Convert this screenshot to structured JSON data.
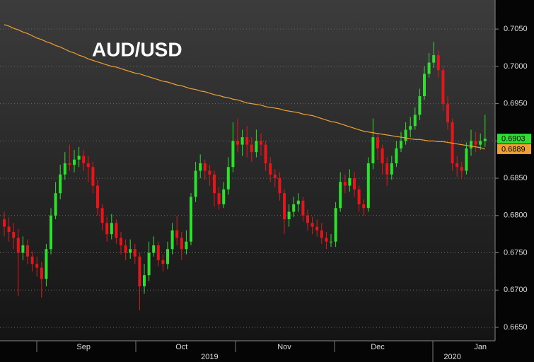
{
  "chart_data": {
    "type": "candlestick",
    "title": "AUD/USD",
    "categories": [
      null,
      null,
      null,
      null,
      null,
      null,
      null,
      null,
      null,
      null,
      null,
      null,
      null,
      null,
      null,
      null,
      null,
      "Sep",
      null,
      null,
      null,
      null,
      null,
      null,
      null,
      null,
      null,
      null,
      null,
      null,
      null,
      null,
      null,
      null,
      null,
      null,
      null,
      null,
      "Oct",
      null,
      null,
      null,
      null,
      null,
      null,
      null,
      null,
      null,
      null,
      null,
      null,
      null,
      null,
      null,
      null,
      null,
      null,
      null,
      null,
      null,
      "Nov",
      null,
      null,
      null,
      null,
      null,
      null,
      null,
      null,
      null,
      null,
      null,
      null,
      null,
      null,
      null,
      null,
      null,
      null,
      null,
      "Dec",
      null,
      null,
      null,
      null,
      null,
      null,
      null,
      null,
      null,
      null,
      null,
      null,
      null,
      null,
      null,
      null,
      null,
      null,
      null,
      null,
      null,
      "Jan",
      null
    ],
    "categories2": [
      null,
      null,
      null,
      null,
      null,
      null,
      null,
      null,
      null,
      null,
      null,
      null,
      null,
      null,
      null,
      null,
      null,
      null,
      null,
      null,
      null,
      null,
      null,
      null,
      null,
      null,
      null,
      null,
      null,
      null,
      null,
      null,
      null,
      null,
      null,
      null,
      null,
      null,
      null,
      null,
      null,
      null,
      null,
      null,
      "2019",
      null,
      null,
      null,
      null,
      null,
      null,
      null,
      null,
      null,
      null,
      null,
      null,
      null,
      null,
      null,
      null,
      null,
      null,
      null,
      null,
      null,
      null,
      null,
      null,
      null,
      null,
      null,
      null,
      null,
      null,
      null,
      null,
      null,
      null,
      null,
      null,
      null,
      null,
      null,
      null,
      null,
      null,
      null,
      null,
      null,
      null,
      null,
      null,
      null,
      null,
      null,
      "2020",
      null,
      null,
      null,
      null,
      null,
      null,
      null
    ],
    "open": [
      0.6795,
      0.6785,
      0.6778,
      0.677,
      0.675,
      0.676,
      0.6745,
      0.6735,
      0.673,
      0.6715,
      0.6755,
      0.68,
      0.683,
      0.6855,
      0.687,
      0.6868,
      0.6875,
      0.688,
      0.687,
      0.6865,
      0.684,
      0.681,
      0.679,
      0.6775,
      0.679,
      0.677,
      0.676,
      0.675,
      0.6755,
      0.6745,
      0.6705,
      0.672,
      0.675,
      0.676,
      0.674,
      0.6735,
      0.6755,
      0.678,
      0.677,
      0.6755,
      0.6765,
      0.6825,
      0.686,
      0.687,
      0.686,
      0.6855,
      0.683,
      0.6815,
      0.6835,
      0.6865,
      0.69,
      0.6895,
      0.6905,
      0.6895,
      0.6885,
      0.69,
      0.6895,
      0.687,
      0.6855,
      0.685,
      0.683,
      0.6795,
      0.6805,
      0.6815,
      0.682,
      0.68,
      0.679,
      0.6785,
      0.678,
      0.677,
      0.6765,
      0.6765,
      0.681,
      0.6845,
      0.684,
      0.685,
      0.6835,
      0.6815,
      0.681,
      0.687,
      0.6905,
      0.689,
      0.687,
      0.6855,
      0.687,
      0.689,
      0.69,
      0.6915,
      0.692,
      0.6935,
      0.696,
      0.699,
      0.7005,
      0.7015,
      0.6995,
      0.695,
      0.6925,
      0.687,
      0.6865,
      0.686,
      0.689,
      0.69,
      0.6895,
      0.69
    ],
    "high": [
      0.6805,
      0.6798,
      0.679,
      0.6782,
      0.6772,
      0.6768,
      0.6752,
      0.6745,
      0.6738,
      0.6762,
      0.681,
      0.6845,
      0.6868,
      0.6885,
      0.6895,
      0.6888,
      0.6892,
      0.6888,
      0.688,
      0.6872,
      0.6848,
      0.6815,
      0.6798,
      0.6802,
      0.6795,
      0.6778,
      0.6768,
      0.6768,
      0.6762,
      0.675,
      0.6735,
      0.6765,
      0.6772,
      0.6765,
      0.6748,
      0.6765,
      0.679,
      0.68,
      0.6778,
      0.678,
      0.683,
      0.6872,
      0.6882,
      0.6875,
      0.6868,
      0.686,
      0.6838,
      0.6845,
      0.6878,
      0.6925,
      0.693,
      0.6915,
      0.692,
      0.6905,
      0.6915,
      0.691,
      0.69,
      0.6878,
      0.6862,
      0.6858,
      0.6835,
      0.6815,
      0.6825,
      0.683,
      0.6825,
      0.6808,
      0.6798,
      0.6795,
      0.679,
      0.6778,
      0.6775,
      0.6818,
      0.6858,
      0.6855,
      0.6862,
      0.6858,
      0.684,
      0.6822,
      0.6878,
      0.693,
      0.691,
      0.6895,
      0.6878,
      0.688,
      0.69,
      0.6912,
      0.6925,
      0.6932,
      0.6945,
      0.697,
      0.7,
      0.7018,
      0.7033,
      0.7022,
      0.7,
      0.696,
      0.693,
      0.688,
      0.6872,
      0.6898,
      0.6915,
      0.6912,
      0.691,
      0.6935
    ],
    "low": [
      0.6772,
      0.6765,
      0.6755,
      0.6692,
      0.674,
      0.6735,
      0.6725,
      0.6718,
      0.669,
      0.6705,
      0.6748,
      0.6795,
      0.6822,
      0.6848,
      0.686,
      0.6858,
      0.6865,
      0.686,
      0.6845,
      0.683,
      0.68,
      0.678,
      0.6765,
      0.6768,
      0.6762,
      0.6748,
      0.674,
      0.6742,
      0.6735,
      0.6673,
      0.6695,
      0.6712,
      0.6745,
      0.6732,
      0.6725,
      0.6728,
      0.6748,
      0.676,
      0.674,
      0.6748,
      0.676,
      0.6818,
      0.685,
      0.6848,
      0.684,
      0.6812,
      0.6808,
      0.681,
      0.6828,
      0.6858,
      0.6885,
      0.688,
      0.6878,
      0.6872,
      0.6878,
      0.688,
      0.686,
      0.6845,
      0.6838,
      0.682,
      0.6775,
      0.6785,
      0.6798,
      0.6805,
      0.6792,
      0.678,
      0.6775,
      0.6772,
      0.6762,
      0.6755,
      0.6758,
      0.6758,
      0.6805,
      0.683,
      0.6832,
      0.6825,
      0.6805,
      0.68,
      0.6805,
      0.6862,
      0.6875,
      0.6855,
      0.684,
      0.6848,
      0.6865,
      0.6885,
      0.6895,
      0.6905,
      0.6915,
      0.6928,
      0.6955,
      0.6985,
      0.6998,
      0.6985,
      0.694,
      0.6915,
      0.686,
      0.6852,
      0.685,
      0.6855,
      0.688,
      0.6885,
      0.6888,
      0.6892
    ],
    "close": [
      0.6785,
      0.6778,
      0.677,
      0.675,
      0.676,
      0.6745,
      0.6735,
      0.673,
      0.6715,
      0.6755,
      0.68,
      0.683,
      0.6855,
      0.687,
      0.6868,
      0.6875,
      0.688,
      0.687,
      0.6865,
      0.684,
      0.681,
      0.679,
      0.6775,
      0.679,
      0.677,
      0.676,
      0.675,
      0.6755,
      0.6745,
      0.6705,
      0.672,
      0.675,
      0.676,
      0.674,
      0.6735,
      0.6755,
      0.678,
      0.677,
      0.6755,
      0.6765,
      0.6825,
      0.686,
      0.687,
      0.686,
      0.6855,
      0.683,
      0.6815,
      0.6835,
      0.6865,
      0.69,
      0.6895,
      0.6905,
      0.6895,
      0.6885,
      0.69,
      0.6895,
      0.687,
      0.6855,
      0.685,
      0.683,
      0.6795,
      0.6805,
      0.6815,
      0.682,
      0.68,
      0.679,
      0.6785,
      0.678,
      0.677,
      0.6765,
      0.6765,
      0.681,
      0.6845,
      0.684,
      0.685,
      0.6835,
      0.6815,
      0.681,
      0.687,
      0.6905,
      0.689,
      0.687,
      0.6855,
      0.687,
      0.689,
      0.69,
      0.6915,
      0.692,
      0.6935,
      0.696,
      0.699,
      0.7005,
      0.7015,
      0.6995,
      0.695,
      0.6925,
      0.687,
      0.6865,
      0.686,
      0.689,
      0.69,
      0.6895,
      0.69,
      0.6903
    ],
    "up_color": "#2ee02e",
    "down_color": "#e8141a",
    "last_label": "0.6903",
    "ma": {
      "color": "#f0a030",
      "last_label": "0.6889",
      "values": [
        0.7056,
        0.7054,
        0.7051,
        0.7049,
        0.7046,
        0.7044,
        0.7041,
        0.7038,
        0.7036,
        0.7033,
        0.7031,
        0.7028,
        0.7026,
        0.7023,
        0.702,
        0.7018,
        0.7015,
        0.7013,
        0.701,
        0.7008,
        0.7006,
        0.7004,
        0.7002,
        0.7,
        0.6999,
        0.6997,
        0.6995,
        0.6993,
        0.6991,
        0.699,
        0.6988,
        0.6986,
        0.6984,
        0.6982,
        0.698,
        0.6979,
        0.6977,
        0.6975,
        0.6974,
        0.6972,
        0.697,
        0.6969,
        0.6967,
        0.6966,
        0.6964,
        0.6962,
        0.6961,
        0.6959,
        0.6958,
        0.6956,
        0.6955,
        0.6953,
        0.6951,
        0.695,
        0.6949,
        0.6948,
        0.6946,
        0.6945,
        0.6944,
        0.6943,
        0.6941,
        0.694,
        0.6939,
        0.6938,
        0.6936,
        0.6935,
        0.6934,
        0.6932,
        0.693,
        0.6928,
        0.6926,
        0.6925,
        0.6923,
        0.6921,
        0.6919,
        0.6917,
        0.6915,
        0.6913,
        0.6912,
        0.6911,
        0.691,
        0.6909,
        0.6908,
        0.6907,
        0.6906,
        0.6905,
        0.6904,
        0.6903,
        0.6902,
        0.6902,
        0.6901,
        0.69,
        0.69,
        0.6899,
        0.6899,
        0.6898,
        0.6897,
        0.6896,
        0.6895,
        0.6894,
        0.6893,
        0.6892,
        0.6891,
        0.6889
      ]
    },
    "ylim": [
      0.6632,
      0.7089
    ],
    "yticks": [
      {
        "value": 0.665,
        "label": "0.6650"
      },
      {
        "value": 0.67,
        "label": "0.6700"
      },
      {
        "value": 0.675,
        "label": "0.6750"
      },
      {
        "value": 0.68,
        "label": "0.6800"
      },
      {
        "value": 0.685,
        "label": "0.6850"
      },
      {
        "value": 0.69,
        "label": "0.6900"
      },
      {
        "value": 0.695,
        "label": "0.6950"
      },
      {
        "value": 0.7,
        "label": "0.7000"
      },
      {
        "value": 0.705,
        "label": "0.7050"
      }
    ],
    "grid": true
  }
}
